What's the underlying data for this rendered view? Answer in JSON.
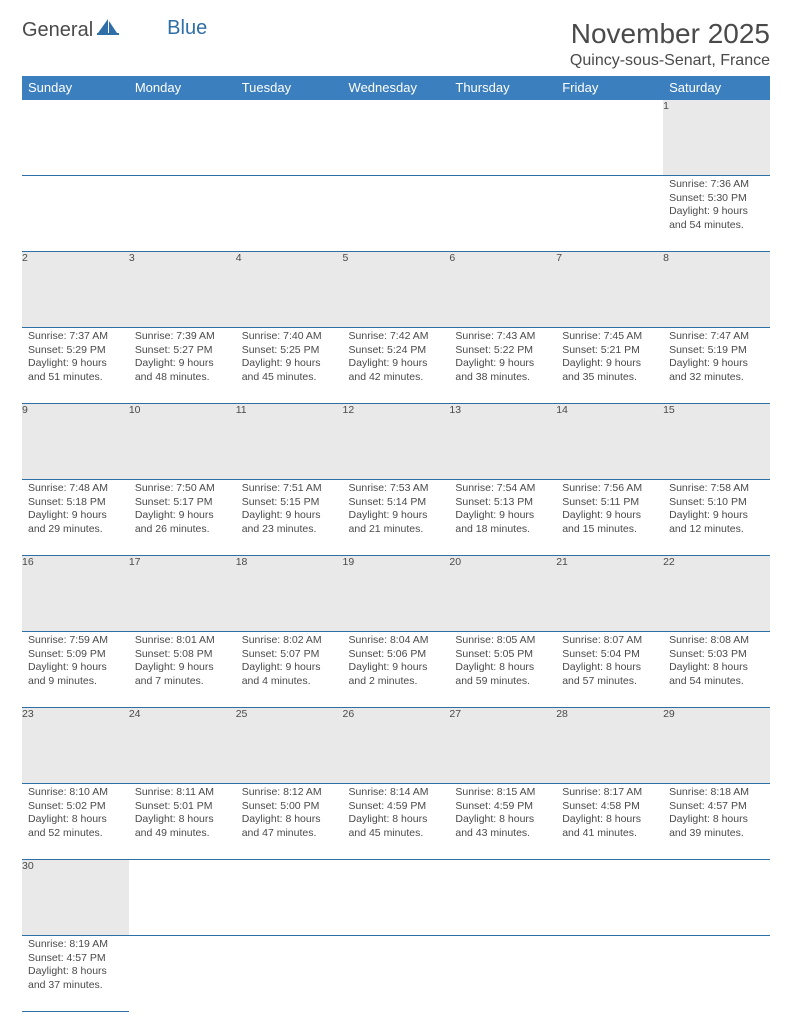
{
  "logo": {
    "text1": "General",
    "text2": "Blue"
  },
  "title": "November 2025",
  "location": "Quincy-sous-Senart, France",
  "colors": {
    "header_bg": "#3b7fbf",
    "header_text": "#ffffff",
    "daynum_bg": "#e9e9e9",
    "rule": "#2f6fa7",
    "text": "#4a4a4a"
  },
  "weekdays": [
    "Sunday",
    "Monday",
    "Tuesday",
    "Wednesday",
    "Thursday",
    "Friday",
    "Saturday"
  ],
  "weeks": [
    [
      null,
      null,
      null,
      null,
      null,
      null,
      {
        "n": "1",
        "sr": "Sunrise: 7:36 AM",
        "ss": "Sunset: 5:30 PM",
        "dl1": "Daylight: 9 hours",
        "dl2": "and 54 minutes."
      }
    ],
    [
      {
        "n": "2",
        "sr": "Sunrise: 7:37 AM",
        "ss": "Sunset: 5:29 PM",
        "dl1": "Daylight: 9 hours",
        "dl2": "and 51 minutes."
      },
      {
        "n": "3",
        "sr": "Sunrise: 7:39 AM",
        "ss": "Sunset: 5:27 PM",
        "dl1": "Daylight: 9 hours",
        "dl2": "and 48 minutes."
      },
      {
        "n": "4",
        "sr": "Sunrise: 7:40 AM",
        "ss": "Sunset: 5:25 PM",
        "dl1": "Daylight: 9 hours",
        "dl2": "and 45 minutes."
      },
      {
        "n": "5",
        "sr": "Sunrise: 7:42 AM",
        "ss": "Sunset: 5:24 PM",
        "dl1": "Daylight: 9 hours",
        "dl2": "and 42 minutes."
      },
      {
        "n": "6",
        "sr": "Sunrise: 7:43 AM",
        "ss": "Sunset: 5:22 PM",
        "dl1": "Daylight: 9 hours",
        "dl2": "and 38 minutes."
      },
      {
        "n": "7",
        "sr": "Sunrise: 7:45 AM",
        "ss": "Sunset: 5:21 PM",
        "dl1": "Daylight: 9 hours",
        "dl2": "and 35 minutes."
      },
      {
        "n": "8",
        "sr": "Sunrise: 7:47 AM",
        "ss": "Sunset: 5:19 PM",
        "dl1": "Daylight: 9 hours",
        "dl2": "and 32 minutes."
      }
    ],
    [
      {
        "n": "9",
        "sr": "Sunrise: 7:48 AM",
        "ss": "Sunset: 5:18 PM",
        "dl1": "Daylight: 9 hours",
        "dl2": "and 29 minutes."
      },
      {
        "n": "10",
        "sr": "Sunrise: 7:50 AM",
        "ss": "Sunset: 5:17 PM",
        "dl1": "Daylight: 9 hours",
        "dl2": "and 26 minutes."
      },
      {
        "n": "11",
        "sr": "Sunrise: 7:51 AM",
        "ss": "Sunset: 5:15 PM",
        "dl1": "Daylight: 9 hours",
        "dl2": "and 23 minutes."
      },
      {
        "n": "12",
        "sr": "Sunrise: 7:53 AM",
        "ss": "Sunset: 5:14 PM",
        "dl1": "Daylight: 9 hours",
        "dl2": "and 21 minutes."
      },
      {
        "n": "13",
        "sr": "Sunrise: 7:54 AM",
        "ss": "Sunset: 5:13 PM",
        "dl1": "Daylight: 9 hours",
        "dl2": "and 18 minutes."
      },
      {
        "n": "14",
        "sr": "Sunrise: 7:56 AM",
        "ss": "Sunset: 5:11 PM",
        "dl1": "Daylight: 9 hours",
        "dl2": "and 15 minutes."
      },
      {
        "n": "15",
        "sr": "Sunrise: 7:58 AM",
        "ss": "Sunset: 5:10 PM",
        "dl1": "Daylight: 9 hours",
        "dl2": "and 12 minutes."
      }
    ],
    [
      {
        "n": "16",
        "sr": "Sunrise: 7:59 AM",
        "ss": "Sunset: 5:09 PM",
        "dl1": "Daylight: 9 hours",
        "dl2": "and 9 minutes."
      },
      {
        "n": "17",
        "sr": "Sunrise: 8:01 AM",
        "ss": "Sunset: 5:08 PM",
        "dl1": "Daylight: 9 hours",
        "dl2": "and 7 minutes."
      },
      {
        "n": "18",
        "sr": "Sunrise: 8:02 AM",
        "ss": "Sunset: 5:07 PM",
        "dl1": "Daylight: 9 hours",
        "dl2": "and 4 minutes."
      },
      {
        "n": "19",
        "sr": "Sunrise: 8:04 AM",
        "ss": "Sunset: 5:06 PM",
        "dl1": "Daylight: 9 hours",
        "dl2": "and 2 minutes."
      },
      {
        "n": "20",
        "sr": "Sunrise: 8:05 AM",
        "ss": "Sunset: 5:05 PM",
        "dl1": "Daylight: 8 hours",
        "dl2": "and 59 minutes."
      },
      {
        "n": "21",
        "sr": "Sunrise: 8:07 AM",
        "ss": "Sunset: 5:04 PM",
        "dl1": "Daylight: 8 hours",
        "dl2": "and 57 minutes."
      },
      {
        "n": "22",
        "sr": "Sunrise: 8:08 AM",
        "ss": "Sunset: 5:03 PM",
        "dl1": "Daylight: 8 hours",
        "dl2": "and 54 minutes."
      }
    ],
    [
      {
        "n": "23",
        "sr": "Sunrise: 8:10 AM",
        "ss": "Sunset: 5:02 PM",
        "dl1": "Daylight: 8 hours",
        "dl2": "and 52 minutes."
      },
      {
        "n": "24",
        "sr": "Sunrise: 8:11 AM",
        "ss": "Sunset: 5:01 PM",
        "dl1": "Daylight: 8 hours",
        "dl2": "and 49 minutes."
      },
      {
        "n": "25",
        "sr": "Sunrise: 8:12 AM",
        "ss": "Sunset: 5:00 PM",
        "dl1": "Daylight: 8 hours",
        "dl2": "and 47 minutes."
      },
      {
        "n": "26",
        "sr": "Sunrise: 8:14 AM",
        "ss": "Sunset: 4:59 PM",
        "dl1": "Daylight: 8 hours",
        "dl2": "and 45 minutes."
      },
      {
        "n": "27",
        "sr": "Sunrise: 8:15 AM",
        "ss": "Sunset: 4:59 PM",
        "dl1": "Daylight: 8 hours",
        "dl2": "and 43 minutes."
      },
      {
        "n": "28",
        "sr": "Sunrise: 8:17 AM",
        "ss": "Sunset: 4:58 PM",
        "dl1": "Daylight: 8 hours",
        "dl2": "and 41 minutes."
      },
      {
        "n": "29",
        "sr": "Sunrise: 8:18 AM",
        "ss": "Sunset: 4:57 PM",
        "dl1": "Daylight: 8 hours",
        "dl2": "and 39 minutes."
      }
    ],
    [
      {
        "n": "30",
        "sr": "Sunrise: 8:19 AM",
        "ss": "Sunset: 4:57 PM",
        "dl1": "Daylight: 8 hours",
        "dl2": "and 37 minutes."
      },
      null,
      null,
      null,
      null,
      null,
      null
    ]
  ]
}
